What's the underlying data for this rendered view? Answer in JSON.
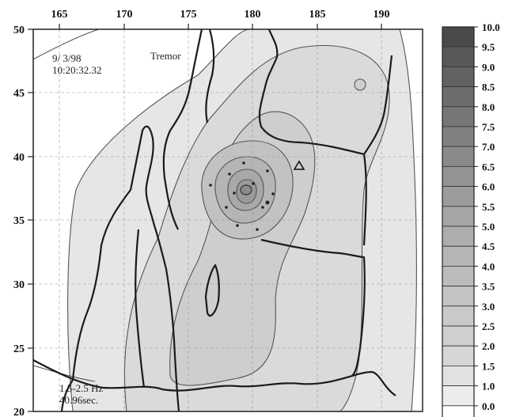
{
  "map": {
    "date": "9/ 3/98",
    "time": "10:20:32.32",
    "label": "Tremor",
    "band": "1.5-2.5 Hz",
    "duration": "40.96sec."
  },
  "axes": {
    "x_ticks": [
      "165",
      "170",
      "175",
      "180",
      "185",
      "190"
    ],
    "y_ticks": [
      "50",
      "45",
      "40",
      "35",
      "30",
      "25",
      "20"
    ]
  },
  "legend": {
    "labels": [
      "10.0",
      "9.5",
      "9.0",
      "8.5",
      "8.0",
      "7.5",
      "7.0",
      "6.5",
      "6.0",
      "5.5",
      "5.0",
      "4.5",
      "4.0",
      "3.5",
      "3.0",
      "2.5",
      "2.0",
      "1.5",
      "1.0",
      "0.0"
    ],
    "colors": [
      "#4a4a4a",
      "#585858",
      "#626262",
      "#6c6c6c",
      "#767676",
      "#808080",
      "#8a8a8a",
      "#939393",
      "#9c9c9c",
      "#a5a5a5",
      "#adadad",
      "#b5b5b5",
      "#bcbcbc",
      "#c3c3c3",
      "#c9c9c9",
      "#cfcfcf",
      "#d6d6d6",
      "#e1e1e1",
      "#ececec",
      "#ffffff"
    ]
  }
}
